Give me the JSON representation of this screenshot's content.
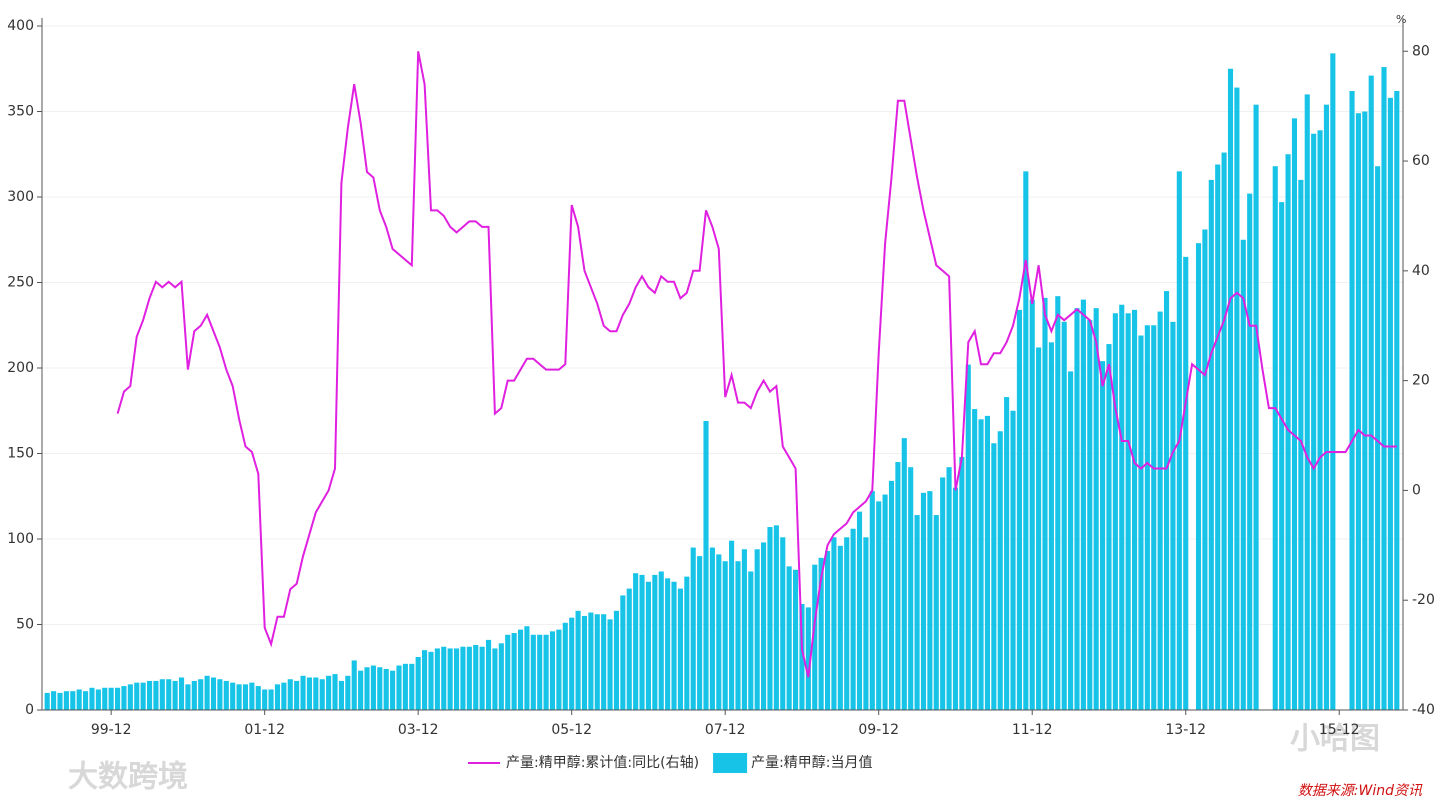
{
  "chart_data": {
    "type": "bar",
    "categories": [
      null,
      null,
      null,
      null,
      null,
      null,
      null,
      null,
      null,
      null,
      "99-12",
      null,
      null,
      null,
      null,
      null,
      null,
      null,
      null,
      null,
      null,
      null,
      null,
      null,
      null,
      null,
      null,
      null,
      null,
      null,
      null,
      null,
      null,
      null,
      "01-12",
      null,
      null,
      null,
      null,
      null,
      null,
      null,
      null,
      null,
      null,
      null,
      null,
      null,
      null,
      null,
      null,
      null,
      null,
      null,
      null,
      null,
      null,
      null,
      "03-12",
      null,
      null,
      null,
      null,
      null,
      null,
      null,
      null,
      null,
      null,
      null,
      null,
      null,
      null,
      null,
      null,
      null,
      null,
      null,
      null,
      null,
      null,
      null,
      "05-12",
      null,
      null,
      null,
      null,
      null,
      null,
      null,
      null,
      null,
      null,
      null,
      null,
      null,
      null,
      null,
      null,
      null,
      null,
      null,
      null,
      null,
      null,
      null,
      "07-12",
      null,
      null,
      null,
      null,
      null,
      null,
      null,
      null,
      null,
      null,
      null,
      null,
      null,
      null,
      null,
      null,
      null,
      null,
      null,
      null,
      null,
      null,
      null,
      "09-12",
      null,
      null,
      null,
      null,
      null,
      null,
      null,
      null,
      null,
      null,
      null,
      null,
      null,
      null,
      null,
      null,
      null,
      null,
      null,
      null,
      null,
      null,
      null,
      "11-12",
      null,
      null,
      null,
      null,
      null,
      null,
      null,
      null,
      null,
      null,
      null,
      null,
      null,
      null,
      null,
      null,
      null,
      null,
      null,
      null,
      null,
      null,
      null,
      "13-12",
      null,
      null,
      null,
      null,
      null,
      null,
      null,
      null,
      null,
      null,
      null,
      null,
      null,
      null,
      null,
      null,
      null,
      null,
      null,
      null,
      null,
      null,
      null,
      "15-12",
      null,
      null,
      null,
      null,
      null,
      null,
      null,
      null,
      null
    ],
    "series": [
      {
        "name": "产量:精甲醇:累计值:同比(右轴)",
        "type": "line",
        "axis": "y2",
        "color": "#e020e0",
        "values": [
          null,
          null,
          null,
          null,
          null,
          null,
          null,
          null,
          null,
          null,
          null,
          14,
          18,
          19,
          28,
          31,
          35,
          38,
          37,
          38,
          37,
          38,
          22,
          29,
          30,
          32,
          29,
          26,
          22,
          19,
          13,
          8,
          7,
          3,
          -25,
          -28,
          -23,
          -23,
          -18,
          -17,
          -12,
          -8,
          -4,
          -2,
          0,
          4,
          56,
          66,
          74,
          67,
          58,
          57,
          51,
          48,
          44,
          43,
          42,
          41,
          80,
          74,
          51,
          51,
          50,
          48,
          47,
          48,
          49,
          49,
          48,
          48,
          14,
          15,
          20,
          20,
          22,
          24,
          24,
          23,
          22,
          22,
          22,
          23,
          52,
          48,
          40,
          37,
          34,
          30,
          29,
          29,
          32,
          34,
          37,
          39,
          37,
          36,
          39,
          38,
          38,
          35,
          36,
          40,
          40,
          51,
          48,
          44,
          17,
          21,
          16,
          16,
          15,
          18,
          20,
          18,
          19,
          8,
          6,
          4,
          -29,
          -34,
          -24,
          -16,
          -10,
          -8,
          -7,
          -6,
          -4,
          -3,
          -2,
          0,
          25,
          45,
          57,
          71,
          71,
          64,
          57,
          51,
          46,
          41,
          40,
          39,
          0,
          6,
          27,
          29,
          23,
          23,
          25,
          25,
          27,
          30,
          35,
          42,
          34,
          41,
          32,
          29,
          32,
          31,
          32,
          33,
          32,
          31,
          27,
          19,
          23,
          15,
          9,
          9,
          5,
          4,
          5,
          4,
          4,
          4,
          7,
          9,
          16,
          23,
          22,
          21,
          25,
          28,
          31,
          35,
          36,
          35,
          30,
          30,
          22,
          15,
          15,
          13,
          11,
          10,
          9,
          6,
          4,
          6,
          7,
          7,
          7,
          7,
          9,
          11,
          10,
          10,
          9,
          8,
          8,
          8
        ]
      },
      {
        "name": "产量:精甲醇:当月值",
        "type": "bar",
        "color": "#17c4e8",
        "values": [
          10,
          11,
          10,
          11,
          11,
          12,
          11,
          13,
          12,
          13,
          13,
          13,
          14,
          15,
          16,
          16,
          17,
          17,
          18,
          18,
          17,
          19,
          15,
          17,
          18,
          20,
          19,
          18,
          17,
          16,
          15,
          15,
          16,
          14,
          12,
          12,
          15,
          16,
          18,
          17,
          20,
          19,
          19,
          18,
          20,
          21,
          17,
          20,
          29,
          23,
          25,
          26,
          25,
          24,
          23,
          26,
          27,
          27,
          31,
          35,
          34,
          36,
          37,
          36,
          36,
          37,
          37,
          38,
          37,
          41,
          36,
          39,
          44,
          45,
          47,
          49,
          44,
          44,
          44,
          46,
          47,
          51,
          54,
          58,
          55,
          57,
          56,
          56,
          53,
          58,
          67,
          71,
          80,
          79,
          75,
          79,
          81,
          77,
          75,
          71,
          78,
          95,
          90,
          169,
          95,
          91,
          87,
          99,
          87,
          94,
          81,
          94,
          98,
          107,
          108,
          101,
          84,
          82,
          62,
          60,
          85,
          89,
          93,
          101,
          96,
          101,
          106,
          116,
          101,
          128,
          122,
          126,
          134,
          145,
          159,
          142,
          114,
          127,
          128,
          114,
          136,
          142,
          130,
          148,
          202,
          176,
          170,
          172,
          156,
          163,
          183,
          175,
          234,
          315,
          240,
          212,
          241,
          215,
          242,
          227,
          198,
          235,
          240,
          228,
          235,
          204,
          214,
          232,
          237,
          232,
          234,
          219,
          225,
          225,
          233,
          245,
          227,
          315,
          265,
          null,
          273,
          281,
          310,
          319,
          326,
          375,
          364,
          275,
          302,
          354,
          null,
          null,
          318,
          297,
          325,
          346,
          310,
          360,
          337,
          339,
          354,
          384,
          null,
          null,
          362,
          349,
          350,
          371,
          318,
          376,
          358,
          362
        ]
      }
    ],
    "ylim": [
      0,
      400
    ],
    "yticks": [
      0,
      50,
      100,
      150,
      200,
      250,
      300,
      350,
      400
    ],
    "y2lim": [
      -40,
      84.6
    ],
    "y2ticks": [
      -40,
      -20,
      0,
      20,
      40,
      60,
      80
    ],
    "y2label": "%",
    "grid": true,
    "legend": "bottom",
    "watermarks": [
      "大数跨境",
      "小哈图"
    ],
    "source": "数据来源:Wind资讯"
  }
}
